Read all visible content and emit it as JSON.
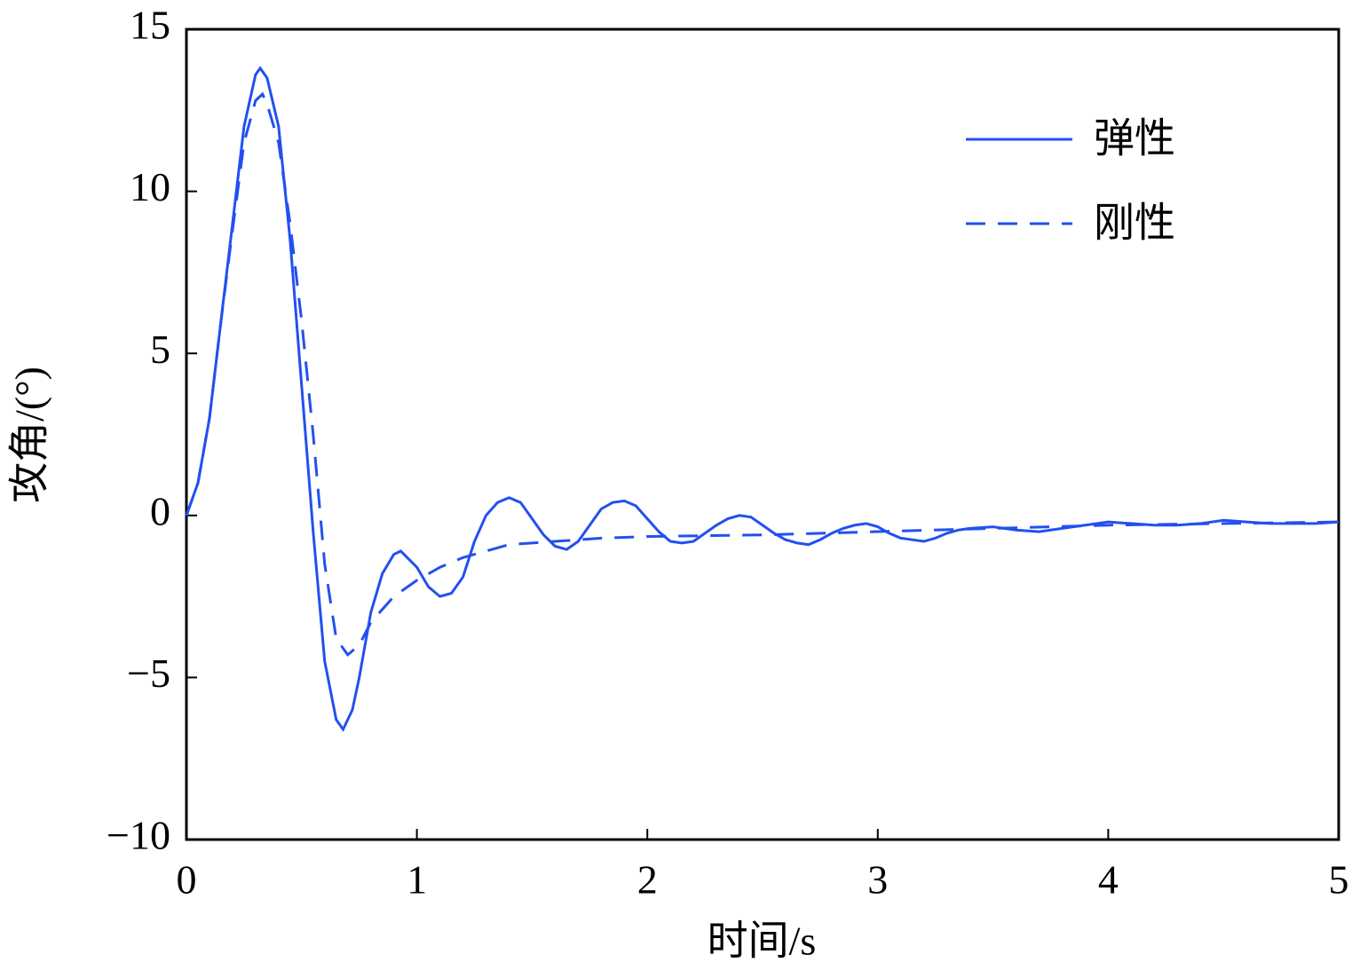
{
  "chart_data": {
    "type": "line",
    "xlabel": "时间/s",
    "ylabel": "攻角/(°)",
    "xlim": [
      0,
      5
    ],
    "ylim": [
      -10,
      15
    ],
    "xticks": [
      0,
      1,
      2,
      3,
      4,
      5
    ],
    "yticks": [
      {
        "value": -10,
        "label": "−10"
      },
      {
        "value": -5,
        "label": "−5"
      },
      0,
      5,
      10,
      15
    ],
    "legend": "upper right",
    "series": [
      {
        "name": "弹性",
        "color": "#2250f0",
        "dash": "solid",
        "x": [
          0,
          0.05,
          0.1,
          0.15,
          0.2,
          0.25,
          0.3,
          0.32,
          0.35,
          0.4,
          0.45,
          0.5,
          0.55,
          0.6,
          0.65,
          0.68,
          0.72,
          0.75,
          0.8,
          0.85,
          0.9,
          0.93,
          1.0,
          1.05,
          1.1,
          1.15,
          1.2,
          1.25,
          1.3,
          1.35,
          1.4,
          1.45,
          1.5,
          1.55,
          1.6,
          1.65,
          1.7,
          1.75,
          1.8,
          1.85,
          1.9,
          1.95,
          2.0,
          2.05,
          2.1,
          2.15,
          2.2,
          2.25,
          2.3,
          2.35,
          2.4,
          2.45,
          2.5,
          2.55,
          2.6,
          2.65,
          2.7,
          2.75,
          2.8,
          2.85,
          2.9,
          2.95,
          3.0,
          3.05,
          3.1,
          3.15,
          3.2,
          3.25,
          3.3,
          3.35,
          3.4,
          3.5,
          3.6,
          3.7,
          3.8,
          3.9,
          4.0,
          4.1,
          4.2,
          4.3,
          4.4,
          4.5,
          4.6,
          4.7,
          4.8,
          4.9,
          5.0
        ],
        "values": [
          0,
          1,
          3,
          6,
          9,
          12,
          13.6,
          13.8,
          13.5,
          12,
          8.5,
          4,
          -0.5,
          -4.5,
          -6.3,
          -6.6,
          -6,
          -5,
          -3,
          -1.8,
          -1.2,
          -1.1,
          -1.6,
          -2.2,
          -2.5,
          -2.4,
          -1.9,
          -0.8,
          0,
          0.4,
          0.55,
          0.4,
          -0.1,
          -0.6,
          -0.95,
          -1.05,
          -0.8,
          -0.3,
          0.2,
          0.4,
          0.45,
          0.3,
          -0.1,
          -0.5,
          -0.8,
          -0.85,
          -0.8,
          -0.55,
          -0.3,
          -0.1,
          0,
          -0.05,
          -0.3,
          -0.55,
          -0.75,
          -0.85,
          -0.9,
          -0.75,
          -0.55,
          -0.4,
          -0.3,
          -0.25,
          -0.35,
          -0.55,
          -0.7,
          -0.75,
          -0.8,
          -0.7,
          -0.55,
          -0.45,
          -0.4,
          -0.35,
          -0.45,
          -0.5,
          -0.4,
          -0.3,
          -0.2,
          -0.25,
          -0.3,
          -0.3,
          -0.25,
          -0.15,
          -0.2,
          -0.25,
          -0.25,
          -0.25,
          -0.2
        ]
      },
      {
        "name": "刚性",
        "color": "#2250f0",
        "dash": "dashed",
        "x": [
          0,
          0.05,
          0.1,
          0.15,
          0.2,
          0.25,
          0.3,
          0.33,
          0.35,
          0.4,
          0.45,
          0.5,
          0.55,
          0.6,
          0.65,
          0.7,
          0.75,
          0.8,
          0.9,
          1.0,
          1.1,
          1.2,
          1.3,
          1.4,
          1.5,
          1.6,
          1.8,
          2.0,
          2.5,
          3.0,
          3.5,
          4.0,
          4.5,
          5.0
        ],
        "values": [
          0,
          1,
          3,
          6,
          8.8,
          11.5,
          12.8,
          13,
          12.7,
          11.5,
          9,
          6,
          2.5,
          -1.5,
          -3.8,
          -4.3,
          -4,
          -3.3,
          -2.5,
          -2,
          -1.6,
          -1.3,
          -1.1,
          -0.9,
          -0.85,
          -0.8,
          -0.7,
          -0.65,
          -0.6,
          -0.5,
          -0.4,
          -0.3,
          -0.25,
          -0.2
        ]
      }
    ]
  }
}
